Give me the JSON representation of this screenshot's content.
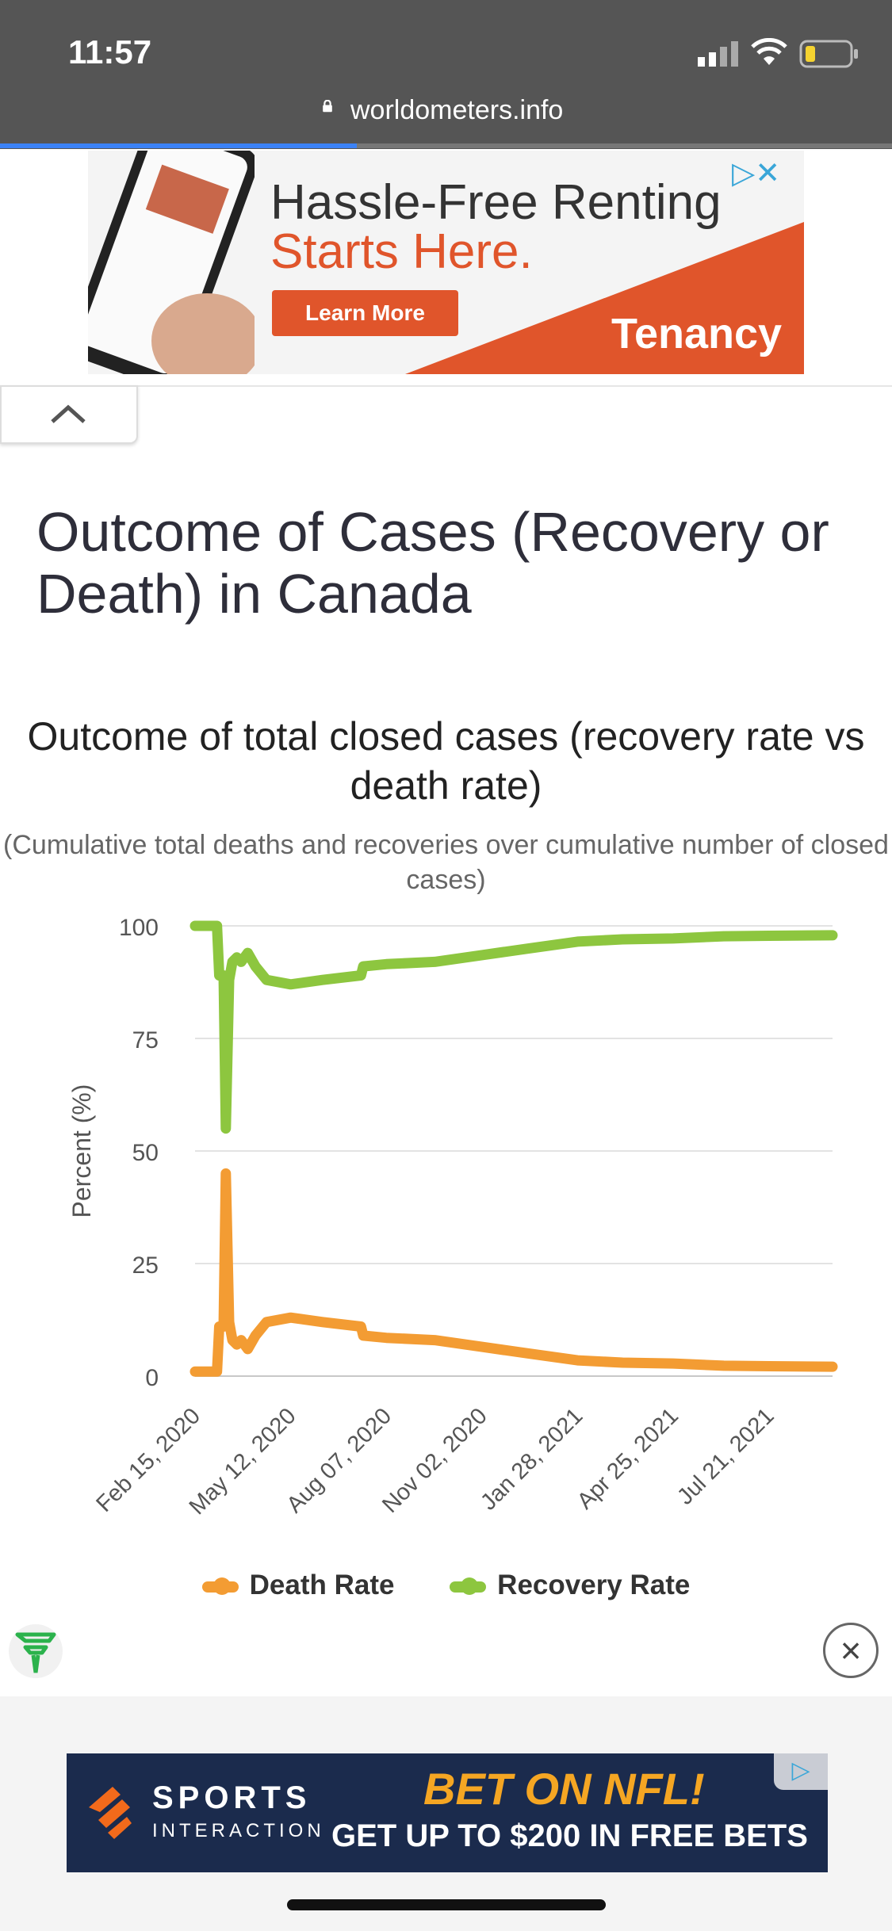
{
  "status_bar": {
    "time": "11:57"
  },
  "browser": {
    "url": "worldometers.info",
    "load_progress": 0.4
  },
  "top_ad": {
    "headline_line1": "Hassle-Free Renting",
    "headline_line2": "Starts Here.",
    "cta": "Learn More",
    "brand": "Tenancy",
    "colors": {
      "accent": "#e0552b"
    }
  },
  "page": {
    "title": "Outcome of Cases (Recovery or Death) in Canada"
  },
  "chart_data": {
    "type": "line",
    "title": "Outcome of total closed cases (recovery rate vs death rate)",
    "subtitle": "(Cumulative total deaths and recoveries over cumulative number of closed cases)",
    "ylabel": "Percent (%)",
    "xlabel": "",
    "ylim": [
      0,
      100
    ],
    "yticks": [
      0,
      25,
      50,
      75,
      100
    ],
    "xticks": [
      "Feb 15, 2020",
      "May 12, 2020",
      "Aug 07, 2020",
      "Nov 02, 2020",
      "Jan 28, 2021",
      "Apr 25, 2021",
      "Jul 21, 2021"
    ],
    "x_range": [
      "2020-02-15",
      "2021-09-17"
    ],
    "grid": true,
    "legend_position": "bottom",
    "series": [
      {
        "name": "Death Rate",
        "color": "#f39c33",
        "points": [
          [
            "2020-02-15",
            1
          ],
          [
            "2020-03-06",
            1
          ],
          [
            "2020-03-08",
            11
          ],
          [
            "2020-03-12",
            11
          ],
          [
            "2020-03-14",
            45
          ],
          [
            "2020-03-17",
            12
          ],
          [
            "2020-03-20",
            8
          ],
          [
            "2020-03-24",
            7
          ],
          [
            "2020-03-28",
            8
          ],
          [
            "2020-04-03",
            6
          ],
          [
            "2020-04-10",
            9
          ],
          [
            "2020-04-20",
            12
          ],
          [
            "2020-05-12",
            13
          ],
          [
            "2020-06-10",
            12
          ],
          [
            "2020-07-15",
            11
          ],
          [
            "2020-07-17",
            9
          ],
          [
            "2020-08-07",
            8.5
          ],
          [
            "2020-09-20",
            8
          ],
          [
            "2020-11-02",
            6.5
          ],
          [
            "2020-12-15",
            5
          ],
          [
            "2021-01-28",
            3.5
          ],
          [
            "2021-03-10",
            3
          ],
          [
            "2021-04-25",
            2.8
          ],
          [
            "2021-06-10",
            2.3
          ],
          [
            "2021-07-21",
            2.2
          ],
          [
            "2021-09-17",
            2.1
          ]
        ]
      },
      {
        "name": "Recovery Rate",
        "color": "#8dc63f",
        "points": [
          [
            "2020-02-15",
            100
          ],
          [
            "2020-03-06",
            100
          ],
          [
            "2020-03-08",
            89
          ],
          [
            "2020-03-12",
            89
          ],
          [
            "2020-03-14",
            55
          ],
          [
            "2020-03-17",
            88
          ],
          [
            "2020-03-20",
            92
          ],
          [
            "2020-03-24",
            93
          ],
          [
            "2020-03-28",
            92
          ],
          [
            "2020-04-03",
            94
          ],
          [
            "2020-04-10",
            91
          ],
          [
            "2020-04-20",
            88
          ],
          [
            "2020-05-12",
            87
          ],
          [
            "2020-06-10",
            88
          ],
          [
            "2020-07-15",
            89
          ],
          [
            "2020-07-17",
            91
          ],
          [
            "2020-08-07",
            91.5
          ],
          [
            "2020-09-20",
            92
          ],
          [
            "2020-11-02",
            93.5
          ],
          [
            "2020-12-15",
            95
          ],
          [
            "2021-01-28",
            96.5
          ],
          [
            "2021-03-10",
            97
          ],
          [
            "2021-04-25",
            97.2
          ],
          [
            "2021-06-10",
            97.7
          ],
          [
            "2021-07-21",
            97.8
          ],
          [
            "2021-09-17",
            97.9
          ]
        ]
      }
    ]
  },
  "bottom_ad": {
    "brand_line1": "SPORTS",
    "brand_line2": "INTERACTION",
    "headline": "BET ON NFL!",
    "subline": "GET UP TO $200 IN FREE BETS"
  }
}
